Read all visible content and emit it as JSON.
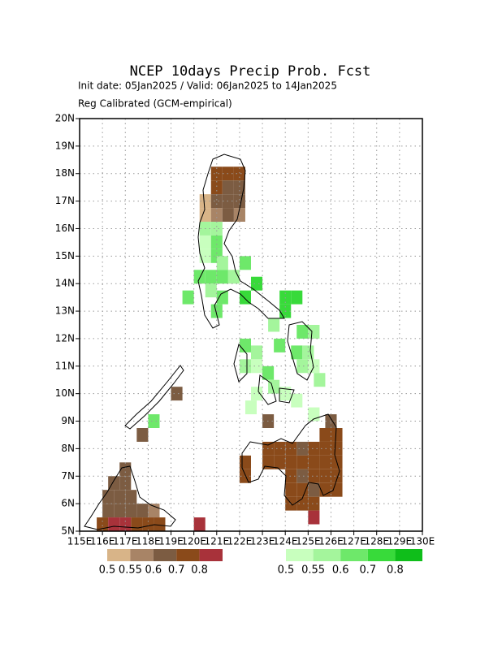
{
  "chart_data": {
    "type": "grid-map",
    "title": "NCEP 10days Precip Prob. Fcst",
    "subtitle": "Init date: 05Jan2025 / Valid: 06Jan2025 to 14Jan2025",
    "subtitle2": "Reg Calibrated (GCM-empirical)",
    "xlim": [
      115,
      130
    ],
    "ylim": [
      5,
      20
    ],
    "xticks": [
      {
        "value": 115,
        "label": "115E"
      },
      {
        "value": 116,
        "label": "116E"
      },
      {
        "value": 117,
        "label": "117E"
      },
      {
        "value": 118,
        "label": "118E"
      },
      {
        "value": 119,
        "label": "119E"
      },
      {
        "value": 120,
        "label": "120E"
      },
      {
        "value": 121,
        "label": "121E"
      },
      {
        "value": 122,
        "label": "122E"
      },
      {
        "value": 123,
        "label": "123E"
      },
      {
        "value": 124,
        "label": "124E"
      },
      {
        "value": 125,
        "label": "125E"
      },
      {
        "value": 126,
        "label": "126E"
      },
      {
        "value": 127,
        "label": "127E"
      },
      {
        "value": 128,
        "label": "128E"
      },
      {
        "value": 129,
        "label": "129E"
      },
      {
        "value": 130,
        "label": "130E"
      }
    ],
    "yticks": [
      {
        "value": 5,
        "label": "5N"
      },
      {
        "value": 6,
        "label": "6N"
      },
      {
        "value": 7,
        "label": "7N"
      },
      {
        "value": 8,
        "label": "8N"
      },
      {
        "value": 9,
        "label": "9N"
      },
      {
        "value": 10,
        "label": "10N"
      },
      {
        "value": 11,
        "label": "11N"
      },
      {
        "value": 12,
        "label": "12N"
      },
      {
        "value": 13,
        "label": "13N"
      },
      {
        "value": 14,
        "label": "14N"
      },
      {
        "value": 15,
        "label": "15N"
      },
      {
        "value": 16,
        "label": "16N"
      },
      {
        "value": 17,
        "label": "17N"
      },
      {
        "value": 18,
        "label": "18N"
      },
      {
        "value": 19,
        "label": "19N"
      },
      {
        "value": 20,
        "label": "20N"
      }
    ],
    "grid": true,
    "colorbars": [
      {
        "levels": [
          0.5,
          0.55,
          0.6,
          0.7,
          0.8
        ],
        "colors": [
          "#d8b488",
          "#a88466",
          "#7c5c42",
          "#8a4a1a",
          "#a8323a"
        ],
        "cells": [
          [
            120.75,
            17.75,
            0.7
          ],
          [
            121.25,
            17.75,
            0.7
          ],
          [
            121.75,
            17.75,
            0.7
          ],
          [
            120.75,
            17.25,
            0.7
          ],
          [
            121.25,
            17.25,
            0.6
          ],
          [
            121.75,
            17.25,
            0.6
          ],
          [
            120.25,
            16.75,
            0.5
          ],
          [
            120.75,
            16.75,
            0.6
          ],
          [
            121.25,
            16.75,
            0.6
          ],
          [
            121.75,
            16.75,
            0.6
          ],
          [
            120.25,
            16.25,
            0.5
          ],
          [
            120.75,
            16.25,
            0.55
          ],
          [
            121.25,
            16.25,
            0.6
          ],
          [
            121.75,
            16.25,
            0.55
          ],
          [
            119.0,
            9.75,
            0.6
          ],
          [
            117.5,
            8.25,
            0.6
          ],
          [
            116.75,
            7.0,
            0.6
          ],
          [
            116.25,
            6.5,
            0.6
          ],
          [
            116.75,
            6.5,
            0.6
          ],
          [
            116.0,
            6.0,
            0.6
          ],
          [
            116.5,
            6.0,
            0.6
          ],
          [
            117.0,
            6.0,
            0.6
          ],
          [
            116.0,
            5.5,
            0.6
          ],
          [
            116.5,
            5.5,
            0.6
          ],
          [
            117.0,
            5.5,
            0.6
          ],
          [
            117.5,
            5.5,
            0.6
          ],
          [
            118.0,
            5.5,
            0.55
          ],
          [
            115.75,
            5.0,
            0.7
          ],
          [
            116.25,
            5.0,
            0.8
          ],
          [
            116.75,
            5.0,
            0.8
          ],
          [
            117.25,
            5.0,
            0.7
          ],
          [
            117.75,
            5.0,
            0.7
          ],
          [
            118.25,
            5.0,
            0.7
          ],
          [
            120.0,
            5.0,
            0.8
          ],
          [
            122.0,
            7.25,
            0.7
          ],
          [
            122.0,
            6.75,
            0.7
          ],
          [
            123.0,
            8.75,
            0.6
          ],
          [
            123.0,
            7.75,
            0.7
          ],
          [
            123.5,
            7.75,
            0.7
          ],
          [
            124.0,
            7.75,
            0.7
          ],
          [
            124.5,
            7.75,
            0.6
          ],
          [
            125.0,
            7.75,
            0.7
          ],
          [
            125.5,
            7.75,
            0.7
          ],
          [
            126.0,
            7.75,
            0.7
          ],
          [
            123.0,
            7.25,
            0.7
          ],
          [
            123.5,
            7.25,
            0.7
          ],
          [
            124.0,
            7.25,
            0.7
          ],
          [
            124.5,
            7.25,
            0.7
          ],
          [
            125.0,
            7.25,
            0.7
          ],
          [
            125.5,
            7.25,
            0.7
          ],
          [
            126.0,
            7.25,
            0.7
          ],
          [
            124.0,
            6.75,
            0.7
          ],
          [
            124.5,
            6.75,
            0.6
          ],
          [
            125.0,
            6.75,
            0.7
          ],
          [
            125.5,
            6.75,
            0.7
          ],
          [
            126.0,
            6.75,
            0.7
          ],
          [
            124.0,
            6.25,
            0.7
          ],
          [
            124.5,
            6.25,
            0.7
          ],
          [
            125.0,
            6.25,
            0.6
          ],
          [
            125.5,
            6.25,
            0.7
          ],
          [
            126.0,
            6.25,
            0.7
          ],
          [
            124.0,
            5.75,
            0.7
          ],
          [
            124.5,
            5.75,
            0.7
          ],
          [
            125.0,
            5.75,
            0.7
          ],
          [
            125.0,
            5.25,
            0.8
          ],
          [
            125.5,
            8.25,
            0.7
          ],
          [
            125.75,
            8.75,
            0.6
          ],
          [
            126.0,
            8.25,
            0.7
          ]
        ]
      },
      {
        "levels": [
          0.5,
          0.55,
          0.6,
          0.7,
          0.8
        ],
        "colors": [
          "#c8ffbe",
          "#a4f59c",
          "#6ee86a",
          "#38da3a",
          "#0fbe1a"
        ],
        "cells": [
          [
            120.25,
            15.75,
            0.55
          ],
          [
            120.75,
            15.75,
            0.55
          ],
          [
            120.25,
            15.25,
            0.5
          ],
          [
            120.75,
            15.25,
            0.6
          ],
          [
            120.25,
            14.75,
            0.5
          ],
          [
            120.75,
            14.75,
            0.6
          ],
          [
            121.0,
            14.5,
            0.55
          ],
          [
            122.0,
            14.5,
            0.6
          ],
          [
            120.0,
            14.0,
            0.6
          ],
          [
            120.5,
            14.0,
            0.6
          ],
          [
            121.0,
            14.0,
            0.6
          ],
          [
            121.5,
            14.0,
            0.55
          ],
          [
            122.5,
            13.75,
            0.7
          ],
          [
            119.5,
            13.25,
            0.6
          ],
          [
            120.5,
            13.5,
            0.55
          ],
          [
            121.0,
            13.25,
            0.6
          ],
          [
            122.0,
            13.25,
            0.7
          ],
          [
            123.75,
            13.25,
            0.7
          ],
          [
            124.25,
            13.25,
            0.7
          ],
          [
            120.75,
            12.75,
            0.6
          ],
          [
            123.75,
            12.75,
            0.7
          ],
          [
            123.25,
            12.25,
            0.55
          ],
          [
            124.5,
            12.0,
            0.6
          ],
          [
            125.0,
            12.0,
            0.55
          ],
          [
            122.0,
            11.5,
            0.6
          ],
          [
            122.5,
            11.25,
            0.55
          ],
          [
            123.5,
            11.5,
            0.6
          ],
          [
            124.25,
            11.25,
            0.6
          ],
          [
            124.75,
            11.25,
            0.55
          ],
          [
            122.0,
            10.75,
            0.55
          ],
          [
            122.5,
            10.75,
            0.5
          ],
          [
            123.0,
            10.5,
            0.6
          ],
          [
            124.5,
            10.75,
            0.55
          ],
          [
            125.0,
            10.75,
            0.5
          ],
          [
            122.5,
            9.75,
            0.5
          ],
          [
            123.25,
            10.0,
            0.55
          ],
          [
            123.75,
            9.75,
            0.5
          ],
          [
            124.25,
            9.5,
            0.5
          ],
          [
            125.25,
            10.25,
            0.55
          ],
          [
            118.0,
            8.75,
            0.6
          ],
          [
            122.25,
            9.25,
            0.5
          ],
          [
            125.0,
            9.0,
            0.5
          ]
        ]
      }
    ]
  }
}
